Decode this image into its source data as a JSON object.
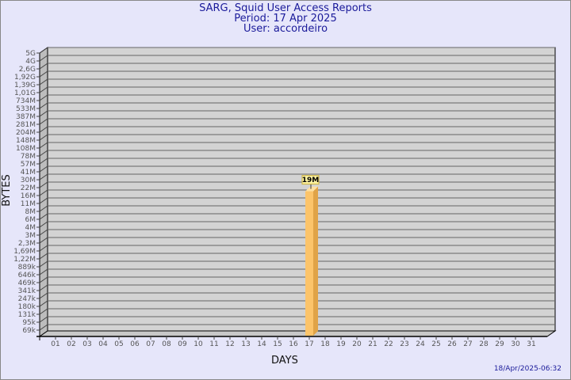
{
  "header": {
    "title": "SARG, Squid User Access Reports",
    "period": "Period: 17 Apr 2025",
    "user": "User: accordeiro"
  },
  "footer": {
    "timestamp": "18/Apr/2025-06:32"
  },
  "colors": {
    "background": "#e6e6fa",
    "plot": "#d3d3d3",
    "bar_front": "#fcc46a",
    "bar_side": "#e0a347",
    "title": "#1a1a9a"
  },
  "chart_data": {
    "type": "bar",
    "xlabel": "DAYS",
    "ylabel": "BYTES",
    "y_scale": "log",
    "y_ticks": [
      "5G",
      "4G",
      "2,6G",
      "1,92G",
      "1,39G",
      "1,01G",
      "734M",
      "533M",
      "387M",
      "281M",
      "204M",
      "148M",
      "108M",
      "78M",
      "57M",
      "41M",
      "30M",
      "22M",
      "16M",
      "11M",
      "8M",
      "6M",
      "4M",
      "3M",
      "2,3M",
      "1,69M",
      "1,22M",
      "889k",
      "646k",
      "469k",
      "341k",
      "247k",
      "180k",
      "131k",
      "95k",
      "69k"
    ],
    "categories": [
      "01",
      "02",
      "03",
      "04",
      "05",
      "06",
      "07",
      "08",
      "09",
      "10",
      "11",
      "12",
      "13",
      "14",
      "15",
      "16",
      "17",
      "18",
      "19",
      "20",
      "21",
      "22",
      "23",
      "24",
      "25",
      "26",
      "27",
      "28",
      "29",
      "30",
      "31"
    ],
    "bars": [
      {
        "day": "17",
        "value": "19M"
      }
    ],
    "grid": true
  }
}
